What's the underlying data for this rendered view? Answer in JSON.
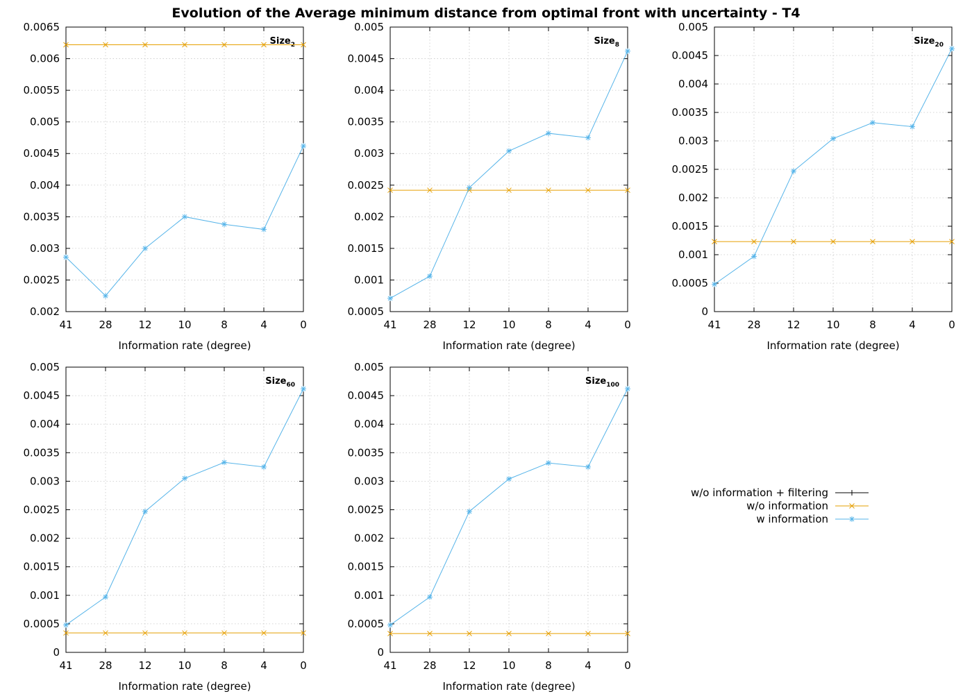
{
  "figure_title": "Evolution of the Average minimum distance from optimal front with uncertainty  - T4",
  "colors": {
    "w/o information + filtering": "#000000",
    "w/o information": "#e69f00",
    "w information": "#56b4e9"
  },
  "legend": {
    "placement": "right-middle",
    "entries": [
      "w/o information + filtering",
      "w/o information",
      "w information"
    ],
    "markers": {
      "w/o information + filtering": "plus",
      "w/o information": "cross",
      "w information": "star"
    }
  },
  "chart_data": [
    {
      "type": "line",
      "title": "",
      "label_base": "Size",
      "label_sub": "2",
      "xlabel": "Information rate (degree)",
      "ylabel": "",
      "categories": [
        "41",
        "28",
        "12",
        "10",
        "8",
        "4",
        "0"
      ],
      "ylim": [
        0.002,
        0.0065
      ],
      "yticks": [
        "0.002",
        "0.0025",
        "0.003",
        "0.0035",
        "0.004",
        "0.0045",
        "0.005",
        "0.0055",
        "0.006",
        "0.0065"
      ],
      "grid": true,
      "series": [
        {
          "name": "w/o information",
          "values": [
            0.00622,
            0.00622,
            0.00622,
            0.00622,
            0.00622,
            0.00622,
            0.00622
          ]
        },
        {
          "name": "w information",
          "values": [
            0.00286,
            0.00225,
            0.003,
            0.0035,
            0.00338,
            0.0033,
            0.00462
          ]
        }
      ]
    },
    {
      "type": "line",
      "title": "",
      "label_base": "Size",
      "label_sub": "8",
      "xlabel": "Information rate (degree)",
      "ylabel": "",
      "categories": [
        "41",
        "28",
        "12",
        "10",
        "8",
        "4",
        "0"
      ],
      "ylim": [
        0.0005,
        0.005
      ],
      "yticks": [
        "0.0005",
        "0.001",
        "0.0015",
        "0.002",
        "0.0025",
        "0.003",
        "0.0035",
        "0.004",
        "0.0045",
        "0.005"
      ],
      "grid": true,
      "series": [
        {
          "name": "w/o information",
          "values": [
            0.00242,
            0.00242,
            0.00242,
            0.00242,
            0.00242,
            0.00242,
            0.00242
          ]
        },
        {
          "name": "w information",
          "values": [
            0.00071,
            0.00106,
            0.00246,
            0.00304,
            0.00332,
            0.00325,
            0.00462
          ]
        }
      ]
    },
    {
      "type": "line",
      "title": "",
      "label_base": "Size",
      "label_sub": "20",
      "xlabel": "Information rate (degree)",
      "ylabel": "",
      "categories": [
        "41",
        "28",
        "12",
        "10",
        "8",
        "4",
        "0"
      ],
      "ylim": [
        0,
        0.005
      ],
      "yticks": [
        "0",
        "0.0005",
        "0.001",
        "0.0015",
        "0.002",
        "0.0025",
        "0.003",
        "0.0035",
        "0.004",
        "0.0045",
        "0.005"
      ],
      "grid": true,
      "series": [
        {
          "name": "w/o information",
          "values": [
            0.00123,
            0.00123,
            0.00123,
            0.00123,
            0.00123,
            0.00123,
            0.00123
          ]
        },
        {
          "name": "w information",
          "values": [
            0.00048,
            0.00097,
            0.00247,
            0.00304,
            0.00332,
            0.00325,
            0.00462
          ]
        }
      ]
    },
    {
      "type": "line",
      "title": "",
      "label_base": "Size",
      "label_sub": "60",
      "xlabel": "Information rate (degree)",
      "ylabel": "",
      "categories": [
        "41",
        "28",
        "12",
        "10",
        "8",
        "4",
        "0"
      ],
      "ylim": [
        0,
        0.005
      ],
      "yticks": [
        "0",
        "0.0005",
        "0.001",
        "0.0015",
        "0.002",
        "0.0025",
        "0.003",
        "0.0035",
        "0.004",
        "0.0045",
        "0.005"
      ],
      "grid": true,
      "series": [
        {
          "name": "w/o information",
          "values": [
            0.00034,
            0.00034,
            0.00034,
            0.00034,
            0.00034,
            0.00034,
            0.00034
          ]
        },
        {
          "name": "w information",
          "values": [
            0.00048,
            0.00097,
            0.00247,
            0.00305,
            0.00333,
            0.00325,
            0.00462
          ]
        }
      ]
    },
    {
      "type": "line",
      "title": "",
      "label_base": "Size",
      "label_sub": "100",
      "xlabel": "Information rate (degree)",
      "ylabel": "",
      "categories": [
        "41",
        "28",
        "12",
        "10",
        "8",
        "4",
        "0"
      ],
      "ylim": [
        0,
        0.005
      ],
      "yticks": [
        "0",
        "0.0005",
        "0.001",
        "0.0015",
        "0.002",
        "0.0025",
        "0.003",
        "0.0035",
        "0.004",
        "0.0045",
        "0.005"
      ],
      "grid": true,
      "series": [
        {
          "name": "w/o information",
          "values": [
            0.00033,
            0.00033,
            0.00033,
            0.00033,
            0.00033,
            0.00033,
            0.00033
          ]
        },
        {
          "name": "w information",
          "values": [
            0.00048,
            0.00097,
            0.00247,
            0.00304,
            0.00332,
            0.00325,
            0.00462
          ]
        }
      ]
    }
  ]
}
